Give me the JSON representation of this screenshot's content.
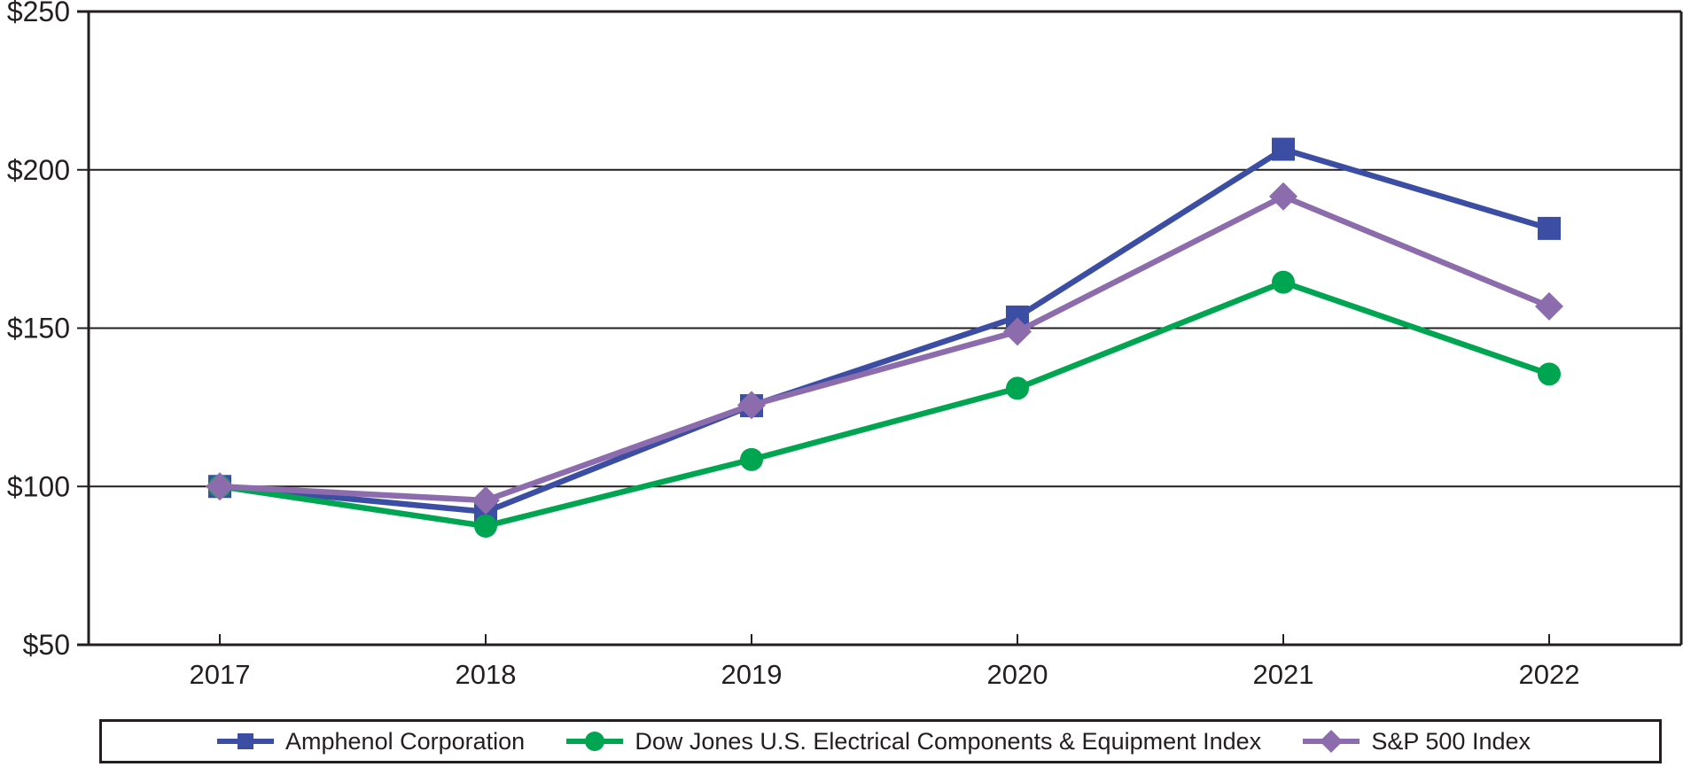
{
  "chart_data": {
    "type": "line",
    "title": "",
    "xlabel": "",
    "ylabel": "",
    "categories": [
      "2017",
      "2018",
      "2019",
      "2020",
      "2021",
      "2022"
    ],
    "series": [
      {
        "name": "Amphenol Corporation",
        "marker": "square",
        "color": "#3B4EA3",
        "values": [
          100,
          92,
          125.5,
          153.5,
          206.5,
          181.5
        ]
      },
      {
        "name": "Dow Jones U.S. Electrical Components & Equipment Index",
        "marker": "circle",
        "color": "#00A551",
        "values": [
          100,
          87.5,
          108.5,
          131,
          164.5,
          135.5
        ]
      },
      {
        "name": "S&P 500 Index",
        "marker": "diamond",
        "color": "#8C6CAD",
        "values": [
          100,
          95.6,
          125.7,
          148.9,
          191.6,
          156.9
        ]
      }
    ],
    "ylim": [
      50,
      250
    ],
    "yticks": [
      {
        "value": 250,
        "label": "$250"
      },
      {
        "value": 200,
        "label": "$200"
      },
      {
        "value": 150,
        "label": "$150"
      },
      {
        "value": 100,
        "label": "$100"
      },
      {
        "value": 50,
        "label": "$50"
      }
    ],
    "grid": "horizontal",
    "legend_position": "bottom",
    "axis_color": "#231F20"
  }
}
